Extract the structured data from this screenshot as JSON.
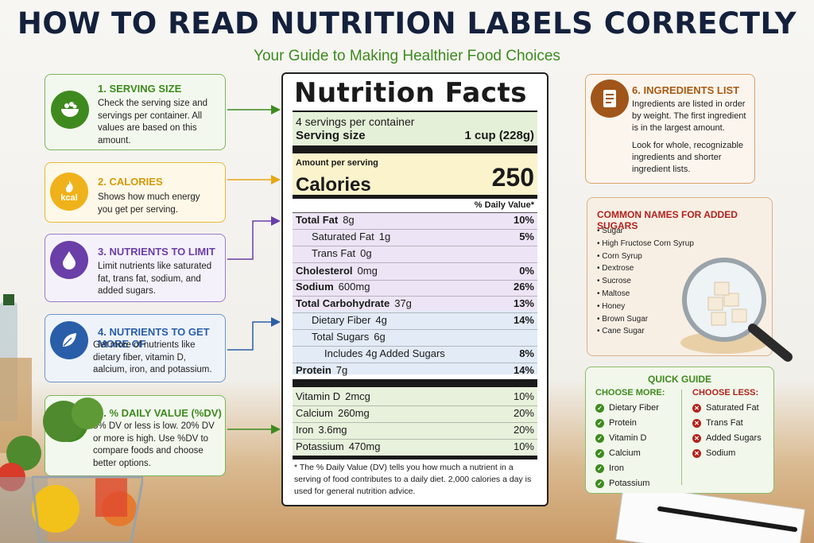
{
  "header": {
    "title": "HOW TO READ NUTRITION LABELS CORRECTLY",
    "subtitle": "Your Guide to Making Healthier Food Choices"
  },
  "left_cards": [
    {
      "title": "1. SERVING SIZE",
      "text": "Check the serving size and servings per container. All values are based on this amount.",
      "icon": "bowl-icon",
      "color": "#3e8a1f"
    },
    {
      "title": "2. CALORIES",
      "text": "Shows how much energy you get per serving.",
      "icon": "flame-kcal-icon",
      "icon_text": "kcal",
      "color": "#f0b21a"
    },
    {
      "title": "3. NUTRIENTS TO LIMIT",
      "text": "Limit nutrients like saturated fat, trans fat, sodium, and added sugars.",
      "icon": "drop-icon",
      "color": "#6a3fa8"
    },
    {
      "title": "4. NUTRIENTS TO GET MORE OF",
      "text": "Get more of nutrients like dietary fiber, vitamin D, aalcium, iron, and potassium.",
      "icon": "leaf-icon",
      "color": "#2a5ea8"
    },
    {
      "title": "5. % DAILY VALUE (%DV)",
      "text": "5% DV or less is low. 20% DV or more is high. Use %DV to compare foods and choose better options.",
      "icon": "percent-icon",
      "icon_text": "%",
      "color": "#3e8a1f"
    }
  ],
  "label": {
    "title": "Nutrition Facts",
    "servings_per_container": "4 servings per container",
    "serving_size_label": "Serving size",
    "serving_size_value": "1 cup (228g)",
    "amount_per_serving": "Amount per serving",
    "calories_label": "Calories",
    "calories_value": "250",
    "dv_header": "% Daily Value*",
    "nutrients": [
      {
        "name": "Total Fat",
        "amount": "8g",
        "dv": "10%"
      },
      {
        "name": "Saturated Fat",
        "amount": "1g",
        "dv": "5%"
      },
      {
        "name": "Trans Fat",
        "amount": "0g",
        "dv": ""
      },
      {
        "name": "Cholesterol",
        "amount": "0mg",
        "dv": "0%"
      },
      {
        "name": "Sodium",
        "amount": "600mg",
        "dv": "26%"
      },
      {
        "name": "Total Carbohydrate",
        "amount": "37g",
        "dv": "13%"
      },
      {
        "name": "Dietary Fiber",
        "amount": "4g",
        "dv": "14%"
      },
      {
        "name": "Total Sugars",
        "amount": "6g",
        "dv": ""
      },
      {
        "name": "Includes 4g Added Sugars",
        "amount": "",
        "dv": "8%"
      },
      {
        "name": "Protein",
        "amount": "7g",
        "dv": "14%"
      }
    ],
    "vitamins": [
      {
        "name": "Vitamin D",
        "amount": "2mcg",
        "dv": "10%"
      },
      {
        "name": "Calcium",
        "amount": "260mg",
        "dv": "20%"
      },
      {
        "name": "Iron",
        "amount": "3.6mg",
        "dv": "20%"
      },
      {
        "name": "Potassium",
        "amount": "470mg",
        "dv": "10%"
      }
    ],
    "footnote": "* The % Daily Value (DV) tells you how much a nutrient in a serving of food contributes to a daily diet. 2,000 calories a day is used for general nutrition advice."
  },
  "ingredients_card": {
    "title": "6. INGREDIENTS LIST",
    "text1": "Ingredients are listed in order by weight. The first ingredient is in the largest amount.",
    "text2": "Look for whole, recognizable ingredients and shorter ingredient lists.",
    "icon": "list-document-icon"
  },
  "sugars_card": {
    "title": "COMMON NAMES FOR ADDED SUGARS",
    "items": [
      "Sugar",
      "High Fructose Corn Syrup",
      "Corn Syrup",
      "Dextrose",
      "Sucrose",
      "Maltose",
      "Honey",
      "Brown Sugar",
      "Cane Sugar"
    ]
  },
  "quick_guide": {
    "title": "QUICK GUIDE",
    "more_header": "CHOOSE MORE:",
    "more_items": [
      "Dietary Fiber",
      "Protein",
      "Vitamin D",
      "Calcium",
      "Iron",
      "Potassium"
    ],
    "less_header": "CHOOSE LESS:",
    "less_items": [
      "Saturated Fat",
      "Trans Fat",
      "Added Sugars",
      "Sodium"
    ]
  }
}
